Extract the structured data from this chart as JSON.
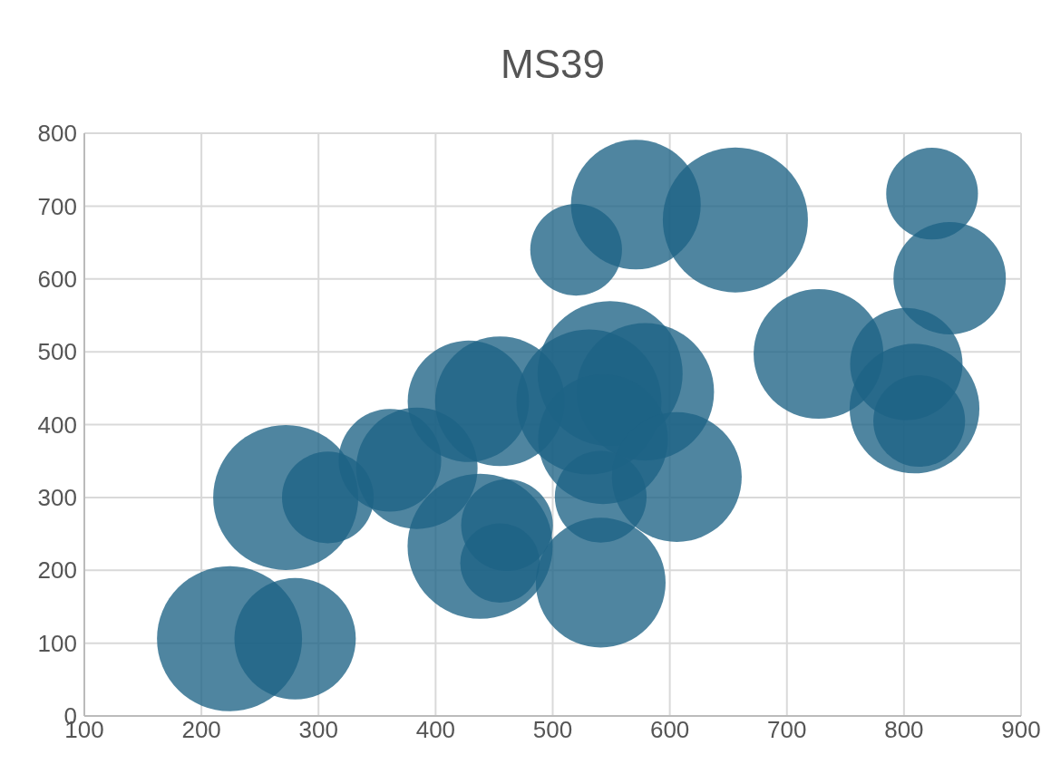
{
  "chart_data": {
    "type": "bubble",
    "title": "MS39",
    "x": [
      224,
      280,
      272,
      308,
      361,
      384,
      428,
      455,
      438,
      461,
      455,
      520,
      571,
      656,
      824,
      839,
      727,
      802,
      809,
      813,
      549,
      531,
      579,
      543,
      541,
      606,
      541
    ],
    "values": [
      106,
      106,
      300,
      300,
      351,
      340,
      432,
      432,
      233,
      262,
      210,
      640,
      702,
      681,
      717,
      601,
      497,
      483,
      422,
      405,
      470,
      431,
      445,
      380,
      301,
      328,
      183
    ],
    "sizes": [
      1,
      0.7,
      1,
      0.4,
      0.5,
      0.7,
      0.7,
      0.8,
      1,
      0.4,
      0.3,
      0.4,
      0.8,
      1,
      0.4,
      0.6,
      0.8,
      0.6,
      0.8,
      0.4,
      1,
      1,
      0.9,
      0.8,
      0.4,
      0.8,
      0.8
    ],
    "color": "#1d6385",
    "xlim": [
      100,
      900
    ],
    "xticks": [
      100,
      200,
      300,
      400,
      500,
      600,
      700,
      800,
      900
    ],
    "ylim": [
      0,
      800
    ],
    "yticks": [
      0,
      100,
      200,
      300,
      400,
      500,
      600,
      700,
      800
    ],
    "grid": true
  }
}
